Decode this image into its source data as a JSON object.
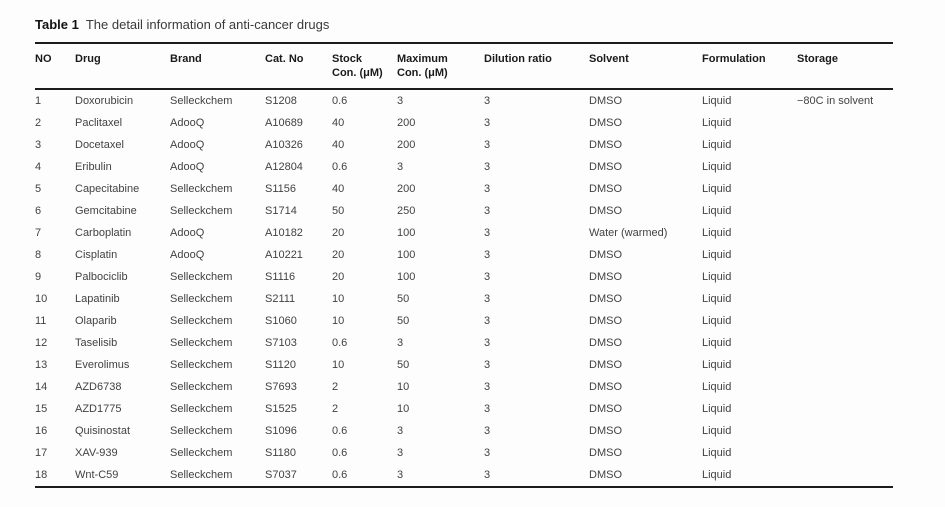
{
  "title": {
    "label": "Table 1",
    "text": "The detail information of anti-cancer drugs"
  },
  "table": {
    "headers": [
      "NO",
      "Drug",
      "Brand",
      "Cat. No",
      "Stock\nCon. (μM)",
      "Maximum\nCon. (μM)",
      "Dilution ratio",
      "Solvent",
      "Formulation",
      "Storage"
    ],
    "rows": [
      [
        "1",
        "Doxorubicin",
        "Selleckchem",
        "S1208",
        "0.6",
        "3",
        "3",
        "DMSO",
        "Liquid",
        "−80C in solvent"
      ],
      [
        "2",
        "Paclitaxel",
        "AdooQ",
        "A10689",
        "40",
        "200",
        "3",
        "DMSO",
        "Liquid",
        ""
      ],
      [
        "3",
        "Docetaxel",
        "AdooQ",
        "A10326",
        "40",
        "200",
        "3",
        "DMSO",
        "Liquid",
        ""
      ],
      [
        "4",
        "Eribulin",
        "AdooQ",
        "A12804",
        "0.6",
        "3",
        "3",
        "DMSO",
        "Liquid",
        ""
      ],
      [
        "5",
        "Capecitabine",
        "Selleckchem",
        "S1156",
        "40",
        "200",
        "3",
        "DMSO",
        "Liquid",
        ""
      ],
      [
        "6",
        "Gemcitabine",
        "Selleckchem",
        "S1714",
        "50",
        "250",
        "3",
        "DMSO",
        "Liquid",
        ""
      ],
      [
        "7",
        "Carboplatin",
        "AdooQ",
        "A10182",
        "20",
        "100",
        "3",
        "Water (warmed)",
        "Liquid",
        ""
      ],
      [
        "8",
        "Cisplatin",
        "AdooQ",
        "A10221",
        "20",
        "100",
        "3",
        "DMSO",
        "Liquid",
        ""
      ],
      [
        "9",
        "Palbociclib",
        "Selleckchem",
        "S1116",
        "20",
        "100",
        "3",
        "DMSO",
        "Liquid",
        ""
      ],
      [
        "10",
        "Lapatinib",
        "Selleckchem",
        "S2111",
        "10",
        "50",
        "3",
        "DMSO",
        "Liquid",
        ""
      ],
      [
        "11",
        "Olaparib",
        "Selleckchem",
        "S1060",
        "10",
        "50",
        "3",
        "DMSO",
        "Liquid",
        ""
      ],
      [
        "12",
        "Taselisib",
        "Selleckchem",
        "S7103",
        "0.6",
        "3",
        "3",
        "DMSO",
        "Liquid",
        ""
      ],
      [
        "13",
        "Everolimus",
        "Selleckchem",
        "S1120",
        "10",
        "50",
        "3",
        "DMSO",
        "Liquid",
        ""
      ],
      [
        "14",
        "AZD6738",
        "Selleckchem",
        "S7693",
        "2",
        "10",
        "3",
        "DMSO",
        "Liquid",
        ""
      ],
      [
        "15",
        "AZD1775",
        "Selleckchem",
        "S1525",
        "2",
        "10",
        "3",
        "DMSO",
        "Liquid",
        ""
      ],
      [
        "16",
        "Quisinostat",
        "Selleckchem",
        "S1096",
        "0.6",
        "3",
        "3",
        "DMSO",
        "Liquid",
        ""
      ],
      [
        "17",
        "XAV-939",
        "Selleckchem",
        "S1180",
        "0.6",
        "3",
        "3",
        "DMSO",
        "Liquid",
        ""
      ],
      [
        "18",
        "Wnt-C59",
        "Selleckchem",
        "S7037",
        "0.6",
        "3",
        "3",
        "DMSO",
        "Liquid",
        ""
      ]
    ]
  }
}
